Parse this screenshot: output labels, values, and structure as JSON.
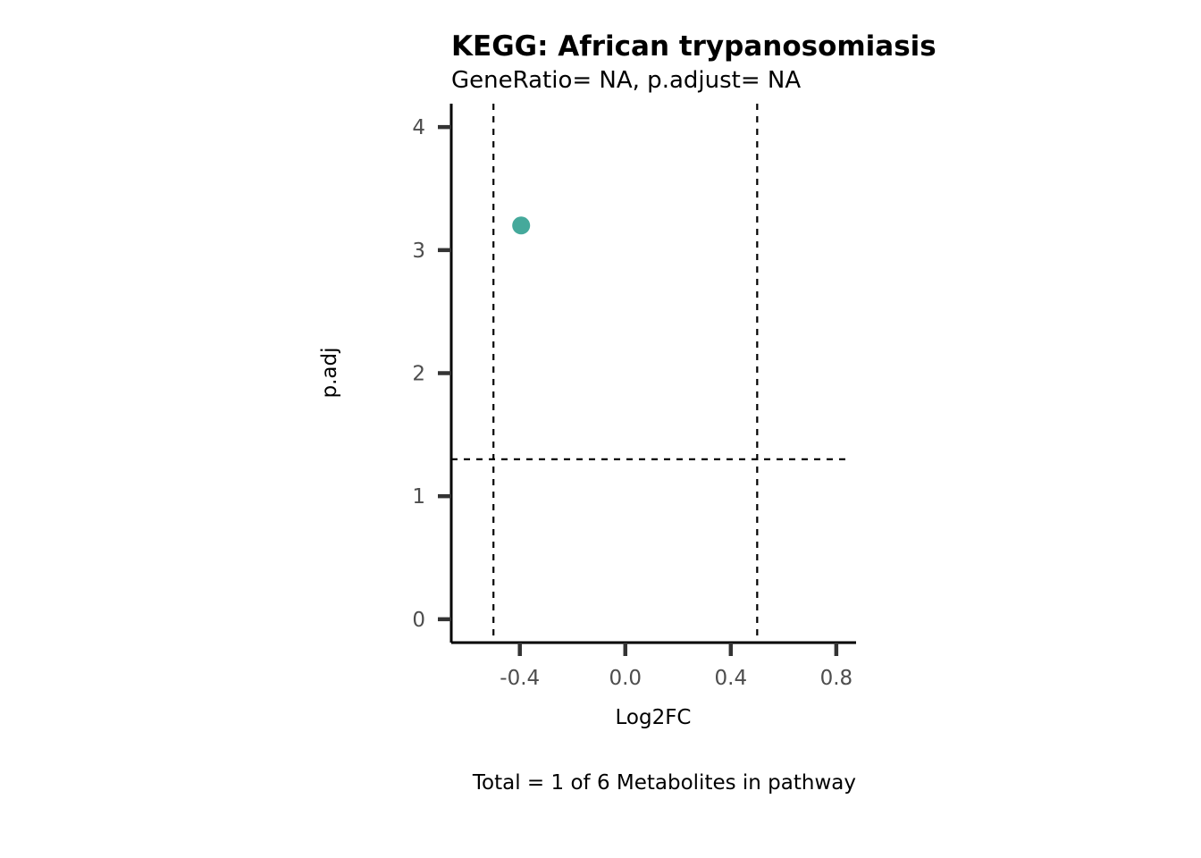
{
  "chart_data": {
    "type": "scatter",
    "title": "KEGG: African trypanosomiasis",
    "subtitle": "GeneRatio= NA, p.adjust= NA",
    "xlabel": "Log2FC",
    "ylabel": "p.adj",
    "caption": "Total = 1 of 6 Metabolites in pathway",
    "xlim": [
      -0.66,
      0.875
    ],
    "ylim": [
      -0.19,
      4.19
    ],
    "x_ticks": [
      -0.4,
      0.0,
      0.4,
      0.8
    ],
    "x_tick_labels": [
      "-0.4",
      "0.0",
      "0.4",
      "0.8"
    ],
    "y_ticks": [
      0,
      1,
      2,
      3,
      4
    ],
    "y_tick_labels": [
      "0",
      "1",
      "2",
      "3",
      "4"
    ],
    "points": [
      {
        "x": -0.395,
        "y": 3.2
      }
    ],
    "vlines": [
      -0.5,
      0.5
    ],
    "hlines": [
      1.3
    ],
    "grid": false,
    "point_color": "#45a99b",
    "line_color": "#000000"
  }
}
